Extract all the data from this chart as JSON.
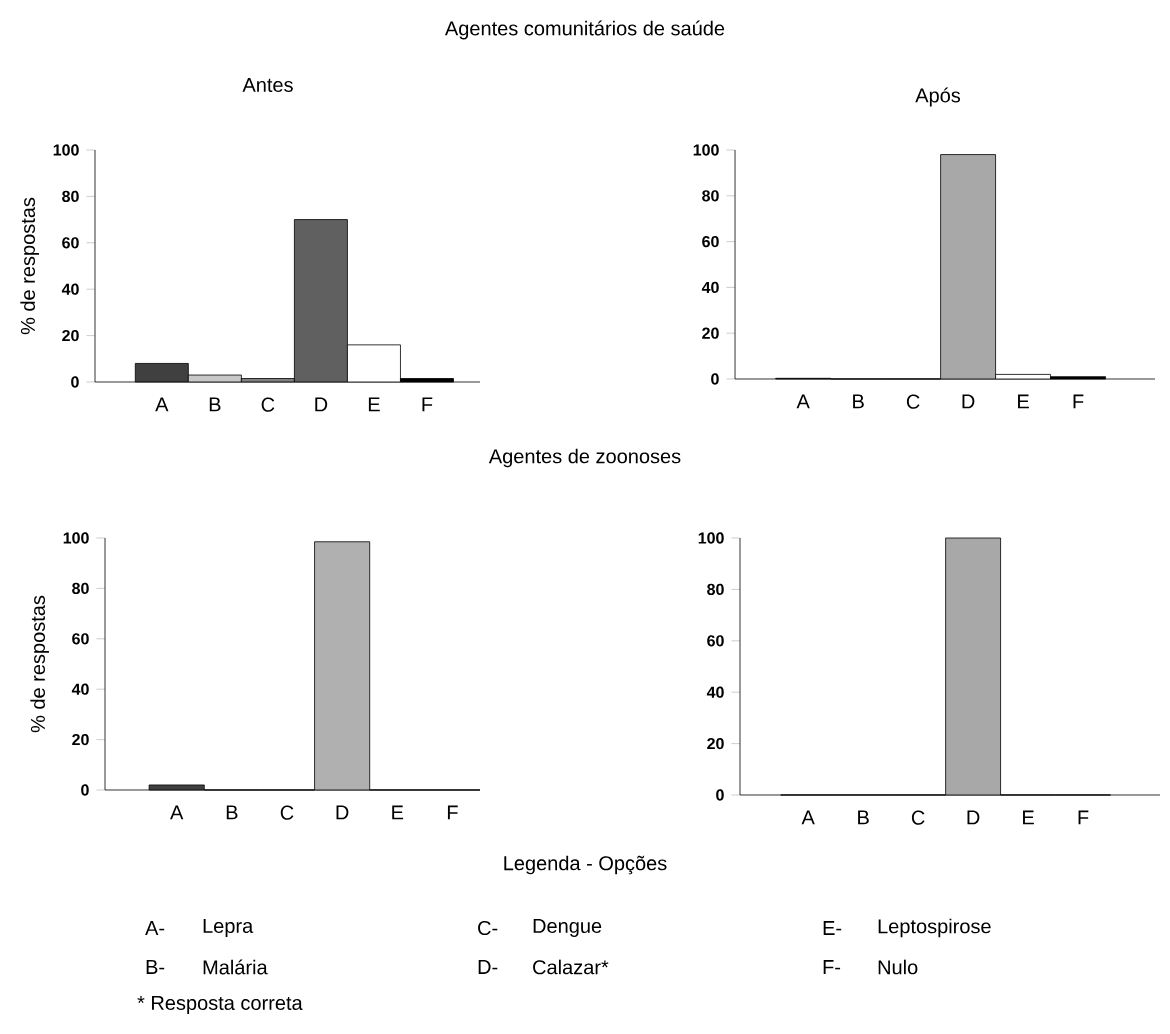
{
  "chart_data": [
    {
      "type": "bar",
      "title": "Antes",
      "annotations": [
        "Agentes comunitários de saúde"
      ],
      "ylabel": "% de respostas",
      "categories": [
        "A",
        "B",
        "C",
        "D",
        "E",
        "F"
      ],
      "values": [
        8,
        3,
        1.5,
        70,
        16,
        1.5
      ],
      "colors": [
        "#404040",
        "#c8c8c8",
        "#808080",
        "#606060",
        "#ffffff",
        "#000000"
      ],
      "ylim": [
        0,
        100
      ],
      "yticks": [
        0,
        20,
        40,
        60,
        80,
        100
      ]
    },
    {
      "type": "bar",
      "title": "Após",
      "categories": [
        "A",
        "B",
        "C",
        "D",
        "E",
        "F"
      ],
      "values": [
        0.3,
        0,
        0,
        98,
        2,
        1
      ],
      "colors": [
        "#404040",
        "#eeeeee",
        "#808080",
        "#a8a8a8",
        "#ffffff",
        "#000000"
      ],
      "ylim": [
        0,
        100
      ],
      "yticks": [
        0,
        20,
        40,
        60,
        80,
        100
      ]
    },
    {
      "type": "bar",
      "annotations": [
        "Agentes de zoonoses"
      ],
      "ylabel": "% de respostas",
      "categories": [
        "A",
        "B",
        "C",
        "D",
        "E",
        "F"
      ],
      "values": [
        2,
        0,
        0,
        98.5,
        0,
        0
      ],
      "colors": [
        "#404040",
        "#eeeeee",
        "#808080",
        "#b0b0b0",
        "#ffffff",
        "#000000"
      ],
      "ylim": [
        0,
        100
      ],
      "yticks": [
        0,
        20,
        40,
        60,
        80,
        100
      ]
    },
    {
      "type": "bar",
      "categories": [
        "A",
        "B",
        "C",
        "D",
        "E",
        "F"
      ],
      "values": [
        0,
        0,
        0,
        100,
        0,
        0
      ],
      "colors": [
        "#404040",
        "#eeeeee",
        "#808080",
        "#a8a8a8",
        "#ffffff",
        "#000000"
      ],
      "ylim": [
        0,
        100
      ],
      "yticks": [
        0,
        20,
        40,
        60,
        80,
        100
      ]
    },
    {
      "type": "other",
      "title": "Legenda - Opções",
      "annotations": [
        "A-",
        "Lepra",
        "B-",
        "Malária",
        "C-",
        "Dengue",
        "D-",
        "Calazar*",
        "E-",
        "Leptospirose",
        "F-",
        "Nulo",
        "* Resposta correta"
      ]
    }
  ]
}
